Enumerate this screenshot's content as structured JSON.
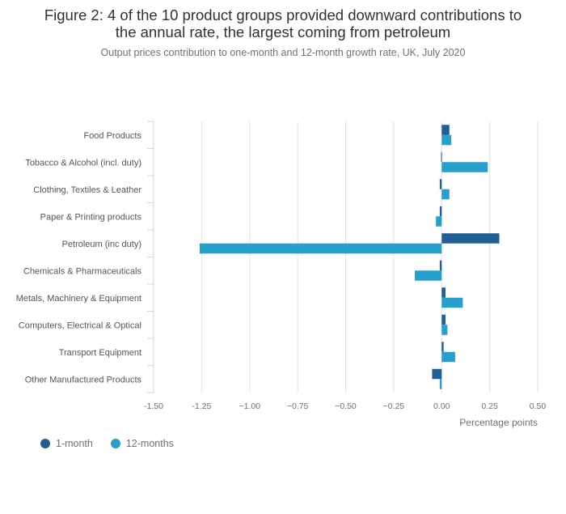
{
  "chart_data": {
    "type": "bar",
    "orientation": "horizontal",
    "title_lines": [
      "Figure 2: 4 of the 10 product groups provided downward contributions to",
      "the annual rate, the largest coming from petroleum"
    ],
    "subtitle": "Output prices contribution to one-month and 12-month growth rate, UK, July 2020",
    "categories": [
      "Food Products",
      "Tobacco & Alcohol (incl. duty)",
      "Clothing, Textiles & Leather",
      "Paper & Printing products",
      "Petroleum (inc duty)",
      "Chemicals & Pharmaceuticals",
      "Metals, Machinery & Equipment",
      "Computers, Electrical & Optical",
      "Transport Equipment",
      "Other Manufactured Products"
    ],
    "series": [
      {
        "name": "1-month",
        "color": "#206095",
        "values": [
          0.04,
          -0.003,
          -0.01,
          -0.01,
          0.3,
          -0.01,
          0.02,
          0.02,
          0.01,
          -0.05
        ]
      },
      {
        "name": "12-months",
        "color": "#27a0cc",
        "values": [
          0.05,
          0.24,
          0.04,
          -0.03,
          -1.26,
          -0.14,
          0.11,
          0.03,
          0.07,
          -0.01
        ]
      }
    ],
    "xlabel": "Percentage points",
    "xlim": [
      -1.5,
      0.5
    ],
    "xticks": [
      -1.5,
      -1.25,
      -1.0,
      -0.75,
      -0.5,
      -0.25,
      0.0,
      0.25,
      0.5
    ],
    "xtick_labels": [
      "-1.50",
      "-1.25",
      "−1.00",
      "−0.75",
      "−0.50",
      "−0.25",
      "0.00",
      "0.25",
      "0.50"
    ],
    "grid": true,
    "legend_position": "bottom-left"
  }
}
